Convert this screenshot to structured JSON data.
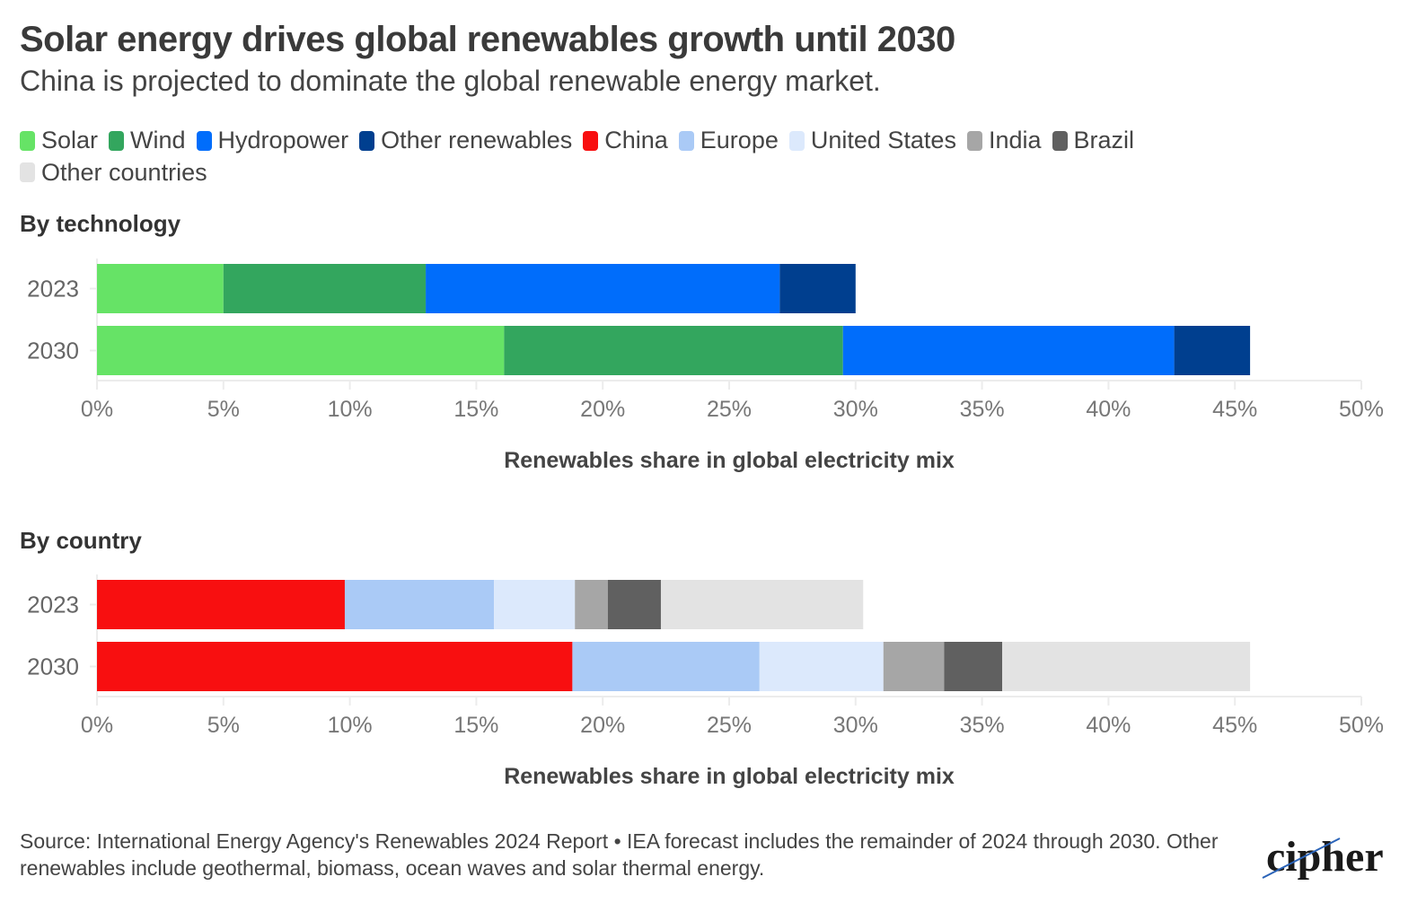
{
  "title": "Solar energy drives global renewables growth until 2030",
  "subtitle": "China is projected to dominate the global renewable energy market.",
  "legend": [
    {
      "label": "Solar",
      "color": "#66e366"
    },
    {
      "label": "Wind",
      "color": "#33a65e"
    },
    {
      "label": "Hydropower",
      "color": "#006dfb"
    },
    {
      "label": "Other renewables",
      "color": "#003f8f"
    },
    {
      "label": "China",
      "color": "#f80f10"
    },
    {
      "label": "Europe",
      "color": "#aacaf6"
    },
    {
      "label": "United States",
      "color": "#dce9fc"
    },
    {
      "label": "India",
      "color": "#a6a6a6"
    },
    {
      "label": "Brazil",
      "color": "#606060"
    },
    {
      "label": "Other countries",
      "color": "#e3e3e3"
    }
  ],
  "footer": "Source: International Energy Agency's Renewables 2024 Report • IEA forecast includes the remainder of 2024 through 2030. Other renewables include geothermal, biomass, ocean waves and solar thermal energy.",
  "logo": "cipher",
  "chart_data": [
    {
      "type": "bar",
      "stacked": true,
      "orientation": "horizontal",
      "title": "By technology",
      "xlabel": "Renewables share in global electricity mix",
      "ylabel": "",
      "categories": [
        "2023",
        "2030"
      ],
      "xlim": [
        0,
        50
      ],
      "xticks": [
        "0%",
        "5%",
        "10%",
        "15%",
        "20%",
        "25%",
        "30%",
        "35%",
        "40%",
        "45%",
        "50%"
      ],
      "series": [
        {
          "name": "Solar",
          "color": "#66e366",
          "values": [
            5.0,
            16.1
          ]
        },
        {
          "name": "Wind",
          "color": "#33a65e",
          "values": [
            8.0,
            13.4
          ]
        },
        {
          "name": "Hydropower",
          "color": "#006dfb",
          "values": [
            14.0,
            13.1
          ]
        },
        {
          "name": "Other renewables",
          "color": "#003f8f",
          "values": [
            3.0,
            3.0
          ]
        }
      ]
    },
    {
      "type": "bar",
      "stacked": true,
      "orientation": "horizontal",
      "title": "By country",
      "xlabel": "Renewables share in global electricity mix",
      "ylabel": "",
      "categories": [
        "2023",
        "2030"
      ],
      "xlim": [
        0,
        50
      ],
      "xticks": [
        "0%",
        "5%",
        "10%",
        "15%",
        "20%",
        "25%",
        "30%",
        "35%",
        "40%",
        "45%",
        "50%"
      ],
      "series": [
        {
          "name": "China",
          "color": "#f80f10",
          "values": [
            9.8,
            18.8
          ]
        },
        {
          "name": "Europe",
          "color": "#aacaf6",
          "values": [
            5.9,
            7.4
          ]
        },
        {
          "name": "United States",
          "color": "#dce9fc",
          "values": [
            3.2,
            4.9
          ]
        },
        {
          "name": "India",
          "color": "#a6a6a6",
          "values": [
            1.3,
            2.4
          ]
        },
        {
          "name": "Brazil",
          "color": "#606060",
          "values": [
            2.1,
            2.3
          ]
        },
        {
          "name": "Other countries",
          "color": "#e3e3e3",
          "values": [
            8.0,
            9.8
          ]
        }
      ]
    }
  ]
}
